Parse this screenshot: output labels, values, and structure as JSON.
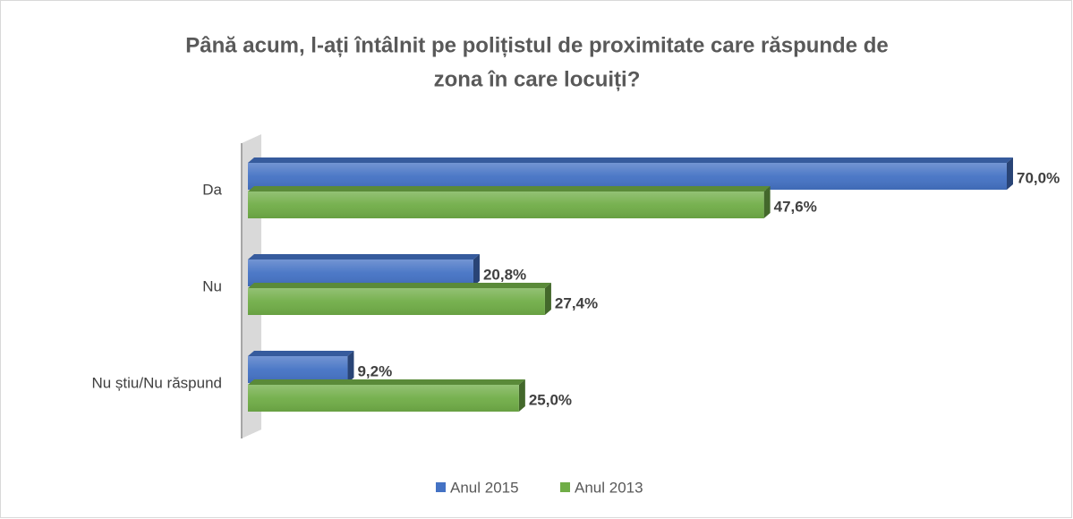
{
  "chart_data": {
    "type": "bar",
    "orientation": "horizontal",
    "title": "Până acum, l-ați întâlnit pe polițistul de proximitate care răspunde de zona în care locuiți?",
    "title_lines": [
      "Până acum, l-ați întâlnit pe polițistul de proximitate care răspunde de",
      "zona în care locuiți?"
    ],
    "categories": [
      "Da",
      "Nu",
      "Nu știu/Nu răspund"
    ],
    "series": [
      {
        "name": "Anul 2015",
        "color": "#4472c4",
        "values": [
          70.0,
          20.8,
          9.2
        ],
        "value_labels": [
          "70,0%",
          "20,8%",
          "9,2%"
        ]
      },
      {
        "name": "Anul 2013",
        "color": "#70ad47",
        "values": [
          47.6,
          27.4,
          25.0
        ],
        "value_labels": [
          "47,6%",
          "27,4%",
          "25,0%"
        ]
      }
    ],
    "legend": "bottom"
  }
}
